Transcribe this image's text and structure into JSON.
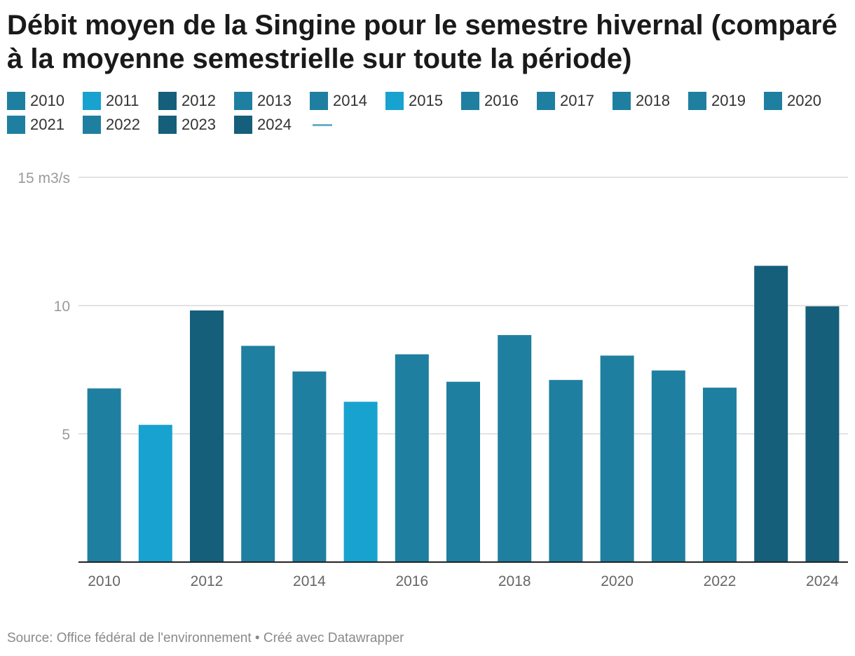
{
  "title": "Débit moyen de la Singine pour le semestre hivernal (comparé à la moyenne semestrielle sur toute la période)",
  "legend": {
    "items": [
      {
        "label": "2010",
        "color": "#1f7fa0"
      },
      {
        "label": "2011",
        "color": "#18a2cf"
      },
      {
        "label": "2012",
        "color": "#165f7a"
      },
      {
        "label": "2013",
        "color": "#1f7fa0"
      },
      {
        "label": "2014",
        "color": "#1f7fa0"
      },
      {
        "label": "2015",
        "color": "#18a2cf"
      },
      {
        "label": "2016",
        "color": "#1f7fa0"
      },
      {
        "label": "2017",
        "color": "#1f7fa0"
      },
      {
        "label": "2018",
        "color": "#1f7fa0"
      },
      {
        "label": "2019",
        "color": "#1f7fa0"
      },
      {
        "label": "2020",
        "color": "#1f7fa0"
      },
      {
        "label": "2021",
        "color": "#1f7fa0"
      },
      {
        "label": "2022",
        "color": "#1f7fa0"
      },
      {
        "label": "2023",
        "color": "#165f7a"
      },
      {
        "label": "2024",
        "color": "#165f7a"
      }
    ],
    "average_line_color": "#6ab0cc"
  },
  "chart_data": {
    "type": "bar",
    "title": "Débit moyen de la Singine pour le semestre hivernal (comparé à la moyenne semestrielle sur toute la période)",
    "categories": [
      "2010",
      "2011",
      "2012",
      "2013",
      "2014",
      "2015",
      "2016",
      "2017",
      "2018",
      "2019",
      "2020",
      "2021",
      "2022",
      "2023",
      "2024"
    ],
    "values": [
      6.77,
      5.35,
      9.81,
      8.43,
      7.43,
      6.25,
      8.1,
      7.03,
      8.85,
      7.1,
      8.05,
      7.47,
      6.8,
      11.55,
      9.97
    ],
    "colors": [
      "#1f7fa0",
      "#18a2cf",
      "#165f7a",
      "#1f7fa0",
      "#1f7fa0",
      "#18a2cf",
      "#1f7fa0",
      "#1f7fa0",
      "#1f7fa0",
      "#1f7fa0",
      "#1f7fa0",
      "#1f7fa0",
      "#1f7fa0",
      "#165f7a",
      "#165f7a"
    ],
    "ylim": [
      0,
      15
    ],
    "yticks": [
      {
        "value": 5,
        "label": "5"
      },
      {
        "value": 10,
        "label": "10"
      },
      {
        "value": 15,
        "label": "15 m3/s"
      }
    ],
    "xtick_labels": [
      "2010",
      "2012",
      "2014",
      "2016",
      "2018",
      "2020",
      "2022",
      "2024"
    ],
    "xlabel": "",
    "ylabel": "m3/s",
    "grid": true
  },
  "footer": {
    "source": "Source: Office fédéral de l'environnement • Créé avec Datawrapper"
  }
}
